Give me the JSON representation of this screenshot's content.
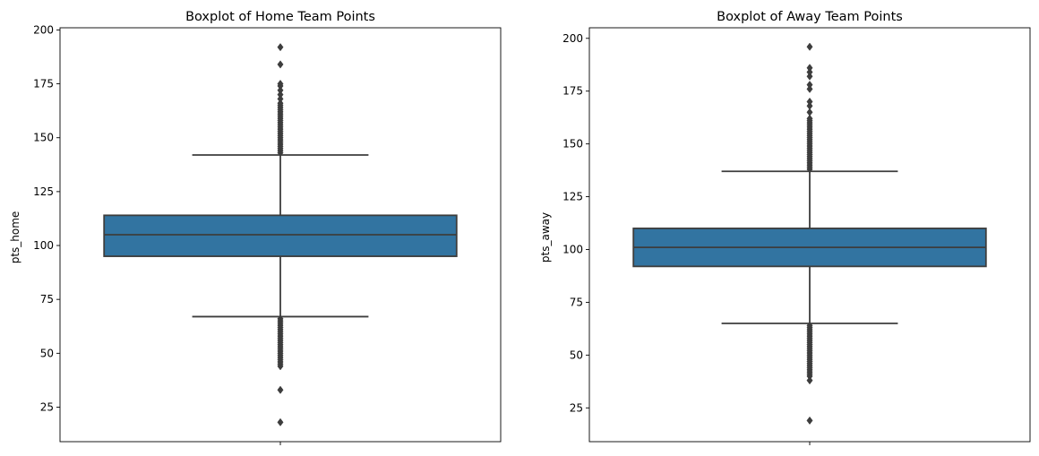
{
  "chart_data": [
    {
      "type": "boxplot",
      "title": "Boxplot of Home Team Points",
      "xlabel": "",
      "ylabel": "pts_home",
      "y_ticks": [
        25,
        50,
        75,
        100,
        125,
        150,
        175,
        200
      ],
      "ylim": [
        9,
        201
      ],
      "grid": false,
      "box_color": "#3274a1",
      "line_color": "#3d3d3d",
      "box": {
        "whisker_low": 67,
        "q1": 95,
        "median": 105,
        "q3": 114,
        "whisker_high": 142
      },
      "outliers_high": [
        143,
        144,
        145,
        146,
        147,
        148,
        149,
        150,
        151,
        152,
        153,
        154,
        155,
        156,
        157,
        158,
        159,
        160,
        161,
        162,
        163,
        164,
        165,
        166,
        168,
        170,
        172,
        174,
        175,
        184,
        192
      ],
      "outliers_low": [
        66,
        65,
        64,
        63,
        62,
        61,
        60,
        59,
        58,
        57,
        56,
        55,
        54,
        53,
        52,
        51,
        50,
        49,
        48,
        47,
        46,
        45,
        44,
        33,
        18
      ]
    },
    {
      "type": "boxplot",
      "title": "Boxplot of Away Team Points",
      "xlabel": "",
      "ylabel": "pts_away",
      "y_ticks": [
        25,
        50,
        75,
        100,
        125,
        150,
        175,
        200
      ],
      "ylim": [
        9,
        205
      ],
      "grid": false,
      "box_color": "#3274a1",
      "line_color": "#3d3d3d",
      "box": {
        "whisker_low": 65,
        "q1": 92,
        "median": 101,
        "q3": 110,
        "whisker_high": 137
      },
      "outliers_high": [
        138,
        139,
        140,
        141,
        142,
        143,
        144,
        145,
        146,
        147,
        148,
        149,
        150,
        151,
        152,
        153,
        154,
        155,
        156,
        157,
        158,
        159,
        160,
        161,
        162,
        165,
        168,
        170,
        176,
        178,
        182,
        184,
        186,
        196
      ],
      "outliers_low": [
        64,
        63,
        62,
        61,
        60,
        59,
        58,
        57,
        56,
        55,
        54,
        53,
        52,
        51,
        50,
        49,
        48,
        47,
        46,
        45,
        44,
        43,
        42,
        41,
        40,
        38,
        19
      ]
    }
  ]
}
